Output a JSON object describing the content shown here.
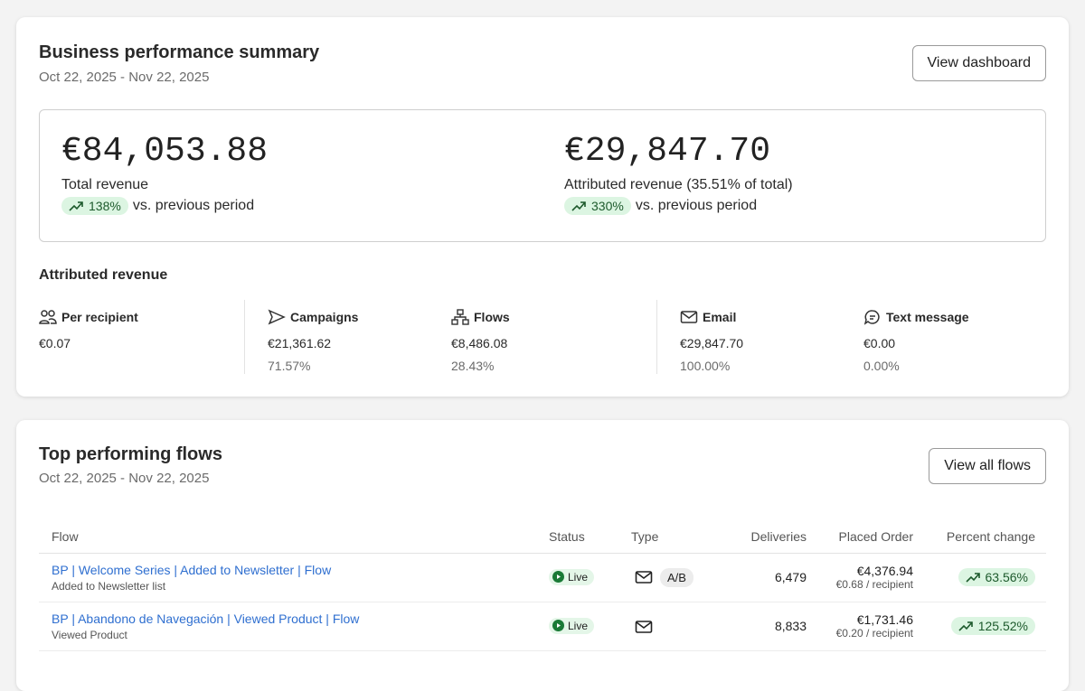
{
  "summary": {
    "title": "Business performance summary",
    "date_range": "Oct 22, 2025 - Nov 22, 2025",
    "button": "View dashboard",
    "kpis": [
      {
        "value": "€84,053.88",
        "label": "Total revenue",
        "change": "138%",
        "note": "vs. previous period"
      },
      {
        "value": "€29,847.70",
        "label": "Attributed revenue (35.51% of total)",
        "change": "330%",
        "note": "vs. previous period"
      }
    ],
    "attributed_title": "Attributed revenue",
    "metrics": [
      {
        "label": "Per recipient",
        "value": "€0.07"
      },
      {
        "label": "Campaigns",
        "value": "€21,361.62",
        "share": "71.57%"
      },
      {
        "label": "Flows",
        "value": "€8,486.08",
        "share": "28.43%"
      },
      {
        "label": "Email",
        "value": "€29,847.70",
        "share": "100.00%"
      },
      {
        "label": "Text message",
        "value": "€0.00",
        "share": "0.00%"
      }
    ]
  },
  "flows": {
    "title": "Top performing flows",
    "date_range": "Oct 22, 2025 - Nov 22, 2025",
    "button": "View all flows",
    "columns": [
      "Flow",
      "Status",
      "Type",
      "Deliveries",
      "Placed Order",
      "Percent change"
    ],
    "rows": [
      {
        "name": "BP | Welcome Series | Added to Newsletter | Flow",
        "trigger": "Added to Newsletter list",
        "status": "Live",
        "badge": "A/B",
        "deliveries": "6,479",
        "placed_order": "€4,376.94",
        "per_recipient": "€0.68 / recipient",
        "change": "63.56%"
      },
      {
        "name": "BP | Abandono de Navegación | Viewed Product | Flow",
        "trigger": "Viewed Product",
        "status": "Live",
        "deliveries": "8,833",
        "placed_order": "€1,731.46",
        "per_recipient": "€0.20 / recipient",
        "change": "125.52%"
      }
    ]
  }
}
